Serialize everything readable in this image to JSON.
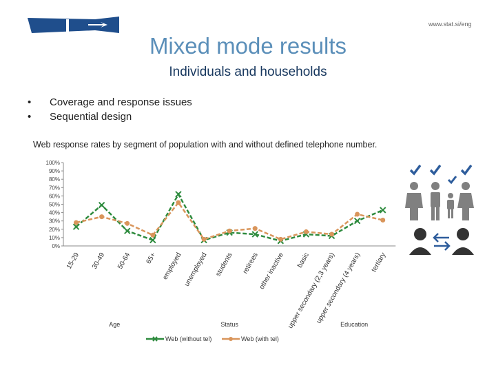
{
  "header": {
    "url": "www.stat.si/eng",
    "title": "Mixed mode results",
    "subtitle": "Individuals and households"
  },
  "bullets": [
    "Coverage and response issues",
    "Sequential design"
  ],
  "bullet_marker": "•",
  "chart_caption": "Web response rates by segment of population with and without defined telephone number.",
  "colors": {
    "title": "#5b8fb9",
    "subtitle": "#17375e",
    "web_without_tel": "#2e8b3e",
    "web_with_tel": "#d9955b",
    "logo_blue": "#1f4e8c",
    "icon_dark": "#333333",
    "check_blue": "#2e5d9c"
  },
  "icons": [
    "logo-icon",
    "checkmark-icon",
    "person-icon",
    "family-icon",
    "exchange-arrows-icon"
  ],
  "chart_data": {
    "type": "line",
    "categories": [
      "15-29",
      "30-49",
      "50-64",
      "65+",
      "employed",
      "unemployed",
      "students",
      "retirees",
      "other inactive",
      "basic",
      "upper secondary (2,3 years)",
      "upper secondary (4 years)",
      "tertiary"
    ],
    "groups": [
      {
        "name": "Age",
        "categories": [
          "15-29",
          "30-49",
          "50-64",
          "65+"
        ]
      },
      {
        "name": "Status",
        "categories": [
          "employed",
          "unemployed",
          "students",
          "retirees",
          "other inactive"
        ]
      },
      {
        "name": "Education",
        "categories": [
          "basic",
          "upper secondary (2,3 years)",
          "upper secondary (4 years)",
          "tertiary"
        ]
      }
    ],
    "series": [
      {
        "name": "Web (without tel)",
        "values": [
          23,
          49,
          18,
          7,
          62,
          7,
          16,
          14,
          6,
          14,
          12,
          30,
          43
        ]
      },
      {
        "name": "Web (with tel)",
        "values": [
          28,
          35,
          27,
          13,
          52,
          8,
          18,
          21,
          8,
          17,
          14,
          38,
          31
        ]
      }
    ],
    "yticks": [
      "0%",
      "10%",
      "20%",
      "30%",
      "40%",
      "50%",
      "60%",
      "70%",
      "80%",
      "90%",
      "100%"
    ],
    "ylim": [
      0,
      100
    ],
    "grid": false,
    "legend": "bottom"
  }
}
